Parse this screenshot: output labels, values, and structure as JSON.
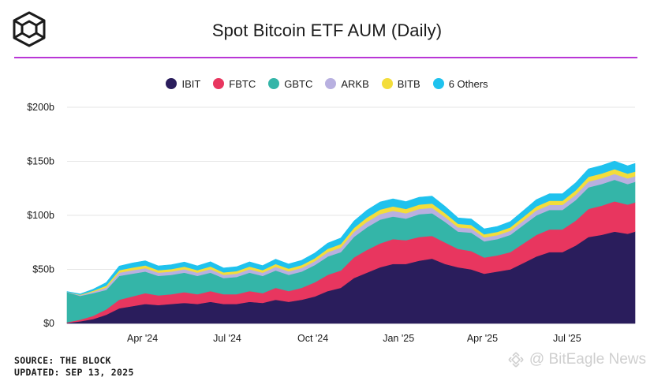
{
  "header": {
    "title": "Spot Bitcoin ETF AUM (Daily)",
    "brand_color": "#b936d6"
  },
  "legend": {
    "items": [
      {
        "label": "IBIT",
        "color": "#2a1d5c"
      },
      {
        "label": "FBTC",
        "color": "#e8365f"
      },
      {
        "label": "GBTC",
        "color": "#34b5a8"
      },
      {
        "label": "ARKB",
        "color": "#b8b0e0"
      },
      {
        "label": "BITB",
        "color": "#f3dd3b"
      },
      {
        "label": "6 Others",
        "color": "#1fc2ee"
      }
    ]
  },
  "footer": {
    "source": "SOURCE: THE BLOCK",
    "updated": "UPDATED: SEP 13, 2025"
  },
  "watermark": {
    "text": "@ BitEagle News",
    "icon": "binance-diamond-icon"
  },
  "chart_data": {
    "type": "area",
    "stacked": true,
    "title": "Spot Bitcoin ETF AUM (Daily)",
    "x": [
      "2024-01-11",
      "2024-01-25",
      "2024-02-08",
      "2024-02-22",
      "2024-03-07",
      "2024-03-21",
      "2024-04-04",
      "2024-04-18",
      "2024-05-02",
      "2024-05-16",
      "2024-05-30",
      "2024-06-13",
      "2024-06-27",
      "2024-07-11",
      "2024-07-25",
      "2024-08-08",
      "2024-08-22",
      "2024-09-05",
      "2024-09-19",
      "2024-10-03",
      "2024-10-17",
      "2024-10-31",
      "2024-11-14",
      "2024-11-28",
      "2024-12-12",
      "2024-12-26",
      "2025-01-09",
      "2025-01-23",
      "2025-02-06",
      "2025-02-20",
      "2025-03-06",
      "2025-03-20",
      "2025-04-03",
      "2025-04-17",
      "2025-05-01",
      "2025-05-15",
      "2025-05-29",
      "2025-06-12",
      "2025-06-26",
      "2025-07-10",
      "2025-07-24",
      "2025-08-07",
      "2025-08-21",
      "2025-09-04",
      "2025-09-12"
    ],
    "series": [
      {
        "name": "IBIT",
        "values": [
          0.5,
          2,
          4,
          8,
          14,
          16,
          18,
          17,
          18,
          19,
          18,
          20,
          18,
          18,
          20,
          19,
          22,
          20,
          22,
          25,
          30,
          33,
          42,
          47,
          52,
          55,
          55,
          58,
          60,
          55,
          52,
          50,
          46,
          48,
          50,
          56,
          62,
          66,
          66,
          72,
          80,
          82,
          85,
          83,
          85
        ]
      },
      {
        "name": "FBTC",
        "values": [
          0.5,
          1.5,
          3,
          5,
          8,
          9,
          10,
          9,
          9,
          10,
          9,
          10,
          9,
          9,
          10,
          9,
          11,
          10,
          11,
          13,
          15,
          16,
          19,
          21,
          22,
          23,
          22,
          22,
          21,
          20,
          17,
          17,
          15,
          15,
          16,
          18,
          20,
          21,
          21,
          23,
          26,
          27,
          28,
          27,
          27
        ]
      },
      {
        "name": "GBTC",
        "values": [
          28,
          22,
          21,
          18,
          22,
          21,
          20,
          18,
          18,
          18,
          17,
          17,
          15,
          16,
          17,
          16,
          16,
          15,
          15,
          16,
          17,
          17,
          19,
          21,
          22,
          21,
          20,
          21,
          21,
          19,
          16,
          17,
          15,
          15,
          16,
          17,
          18,
          18,
          18,
          19,
          20,
          20,
          20,
          19,
          19
        ]
      },
      {
        "name": "ARKB",
        "values": [
          0.2,
          0.6,
          1.2,
          2.2,
          3,
          3.2,
          3.2,
          3,
          3,
          3.2,
          3,
          3.3,
          3,
          3,
          3.2,
          3,
          3.4,
          3.2,
          3.4,
          3.6,
          4,
          4.2,
          4.6,
          5,
          5.2,
          5.2,
          5,
          5,
          5,
          4.5,
          4,
          4,
          3.6,
          3.7,
          3.8,
          4.2,
          4.6,
          4.7,
          4.7,
          5,
          5.3,
          5.3,
          5.3,
          5.2,
          5.2
        ]
      },
      {
        "name": "BITB",
        "values": [
          0.1,
          0.5,
          1,
          1.8,
          2.3,
          2.5,
          2.5,
          2.3,
          2.3,
          2.4,
          2.3,
          2.5,
          2.3,
          2.4,
          2.5,
          2.4,
          2.6,
          2.5,
          2.6,
          2.8,
          3.1,
          3.3,
          3.7,
          4,
          4.1,
          4.1,
          4,
          4,
          4,
          3.6,
          3.2,
          3.2,
          2.9,
          3,
          3.1,
          3.4,
          3.7,
          3.8,
          3.8,
          4.1,
          4.4,
          4.4,
          4.5,
          4.4,
          4.4
        ]
      },
      {
        "name": "6 Others",
        "values": [
          0.2,
          0.7,
          1.5,
          2.8,
          3.8,
          4.2,
          4.3,
          4,
          4,
          4.2,
          4,
          4.3,
          4,
          4.1,
          4.3,
          4.1,
          4.5,
          4.3,
          4.5,
          4.8,
          5.3,
          5.6,
          6.3,
          6.8,
          7,
          7,
          6.8,
          6.8,
          6.8,
          6.2,
          5.5,
          5.5,
          5,
          5.1,
          5.3,
          5.8,
          6.3,
          6.5,
          6.5,
          6.9,
          7.4,
          7.4,
          7.5,
          7.3,
          7.4
        ]
      }
    ],
    "ylim": [
      0,
      200
    ],
    "y_ticks": [
      0,
      50,
      100,
      150,
      200
    ],
    "y_tick_labels": [
      "$0",
      "$50b",
      "$100b",
      "$150b",
      "$200b"
    ],
    "x_ticks": [
      "2024-04-01",
      "2024-07-01",
      "2024-10-01",
      "2025-01-01",
      "2025-04-01",
      "2025-07-01"
    ],
    "x_tick_labels": [
      "Apr '24",
      "Jul '24",
      "Oct '24",
      "Jan '25",
      "Apr '25",
      "Jul '25"
    ],
    "xlim": [
      "2024-01-11",
      "2025-09-12"
    ],
    "xlabel": "",
    "ylabel": "",
    "grid": "horizontal",
    "legend_position": "top"
  }
}
